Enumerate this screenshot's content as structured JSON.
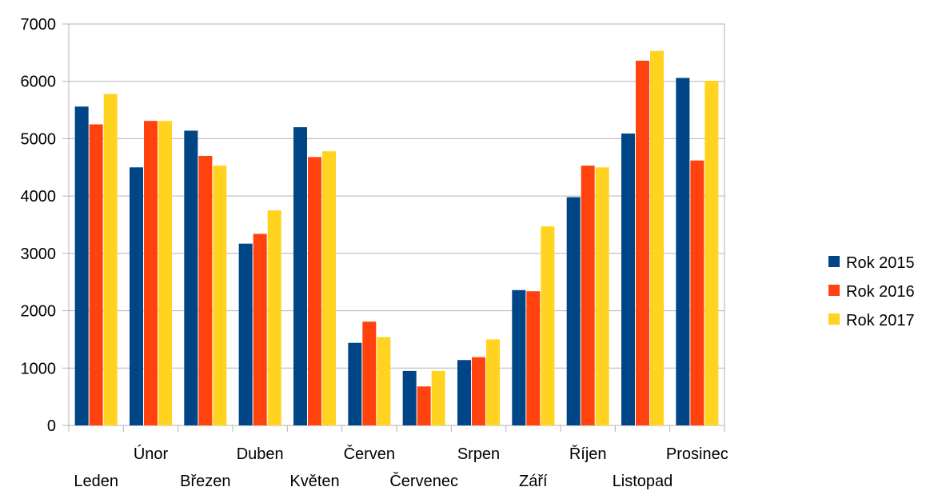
{
  "chart_data": {
    "type": "bar",
    "title": "",
    "xlabel": "",
    "ylabel": "",
    "ylim": [
      0,
      7000
    ],
    "yticks": [
      0,
      1000,
      2000,
      3000,
      4000,
      5000,
      6000,
      7000
    ],
    "grid": true,
    "legend_position": "right",
    "categories": [
      "Leden",
      "Únor",
      "Březen",
      "Duben",
      "Květen",
      "Červen",
      "Červenec",
      "Srpen",
      "Září",
      "Říjen",
      "Listopad",
      "Prosinec"
    ],
    "series": [
      {
        "name": "Rok 2015",
        "color": "#004586",
        "values": [
          5560,
          4500,
          5140,
          3170,
          5200,
          1440,
          950,
          1140,
          2360,
          3980,
          5090,
          6060
        ]
      },
      {
        "name": "Rok 2016",
        "color": "#ff420e",
        "values": [
          5250,
          5310,
          4700,
          3340,
          4680,
          1810,
          680,
          1190,
          2340,
          4530,
          6360,
          4620
        ]
      },
      {
        "name": "Rok 2017",
        "color": "#ffd320",
        "values": [
          5780,
          5310,
          4530,
          3750,
          4780,
          1540,
          950,
          1500,
          3470,
          4500,
          6530,
          6010
        ]
      }
    ]
  }
}
